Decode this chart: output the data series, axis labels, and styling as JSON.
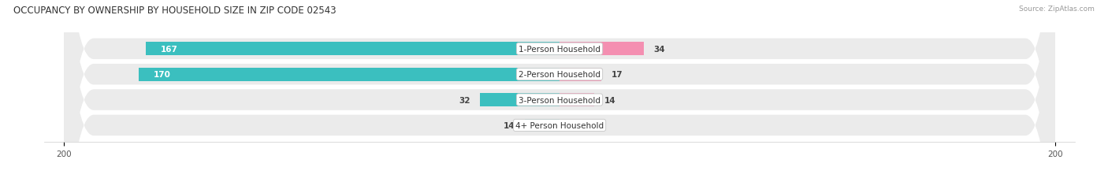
{
  "title": "OCCUPANCY BY OWNERSHIP BY HOUSEHOLD SIZE IN ZIP CODE 02543",
  "source": "Source: ZipAtlas.com",
  "categories": [
    "1-Person Household",
    "2-Person Household",
    "3-Person Household",
    "4+ Person Household"
  ],
  "owner_values": [
    167,
    170,
    32,
    14
  ],
  "renter_values": [
    34,
    17,
    14,
    0
  ],
  "owner_color": "#3bbfbf",
  "renter_color": "#f48fb1",
  "row_bg_color": "#ebebeb",
  "axis_max": 200,
  "figsize": [
    14.06,
    2.32
  ],
  "dpi": 100,
  "title_fontsize": 8.5,
  "source_fontsize": 6.5,
  "label_fontsize": 7.5,
  "cat_fontsize": 7.5,
  "tick_fontsize": 7.5
}
